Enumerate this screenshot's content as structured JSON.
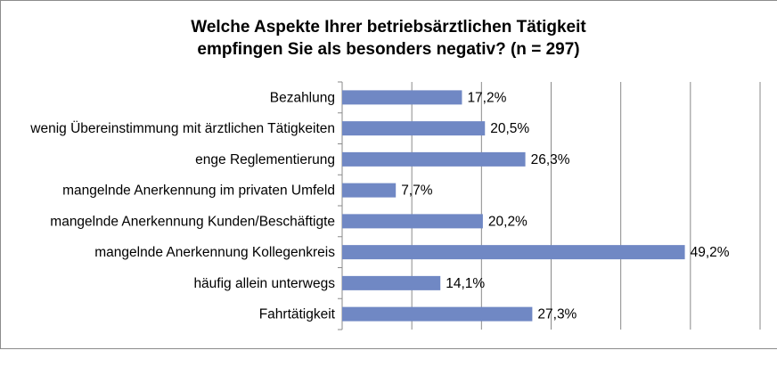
{
  "chart_data": {
    "type": "bar",
    "orientation": "horizontal",
    "title_lines": [
      "Welche Aspekte Ihrer betriebsärztlichen Tätigkeit",
      "empfingen Sie als besonders negativ? (n = 297)"
    ],
    "categories": [
      "Bezahlung",
      "wenig Übereinstimmung mit ärztlichen Tätigkeiten",
      "enge Reglementierung",
      "mangelnde Anerkennung im privaten Umfeld",
      "mangelnde Anerkennung Kunden/Beschäftigte",
      "mangelnde Anerkennung Kollegenkreis",
      "häufig allein unterwegs",
      "Fahrtätigkeit"
    ],
    "values": [
      17.2,
      20.5,
      26.3,
      7.7,
      20.2,
      49.2,
      14.1,
      27.3
    ],
    "value_labels": [
      "17,2%",
      "20,5%",
      "26,3%",
      "7,7%",
      "20,2%",
      "49,2%",
      "14,1%",
      "27,3%"
    ],
    "xlim": [
      0,
      60
    ],
    "grid": true,
    "bar_color": "#7088c4"
  }
}
